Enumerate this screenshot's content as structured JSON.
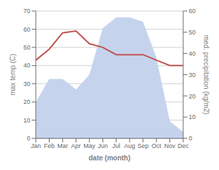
{
  "chart_data": {
    "type": "line",
    "xlabel": "date (month)",
    "ylabel": "max temp (C)",
    "y2label": "med. precipitation (kg/m2)",
    "categories": [
      "Jan",
      "Feb",
      "Mar",
      "Apr",
      "May",
      "Jun",
      "Jul",
      "Aug",
      "Sep",
      "Oct",
      "Nov",
      "Dec"
    ],
    "series": [
      {
        "type": "area",
        "axis": "y2",
        "color": "#c5d3ed",
        "values": [
          17,
          28,
          28,
          23,
          30,
          52,
          57,
          57,
          55,
          38,
          8,
          3
        ]
      },
      {
        "type": "line",
        "color": "#c0504d",
        "values": [
          43,
          49,
          58,
          59,
          52,
          50,
          46,
          46,
          46,
          43,
          40,
          40
        ]
      }
    ],
    "ylim": [
      0,
      70
    ],
    "yticks": [
      0,
      10,
      20,
      30,
      40,
      50,
      60,
      70
    ],
    "y2lim": [
      0,
      60
    ],
    "y2ticks": [
      0,
      10,
      20,
      30,
      40,
      50,
      60
    ],
    "grid": true
  }
}
